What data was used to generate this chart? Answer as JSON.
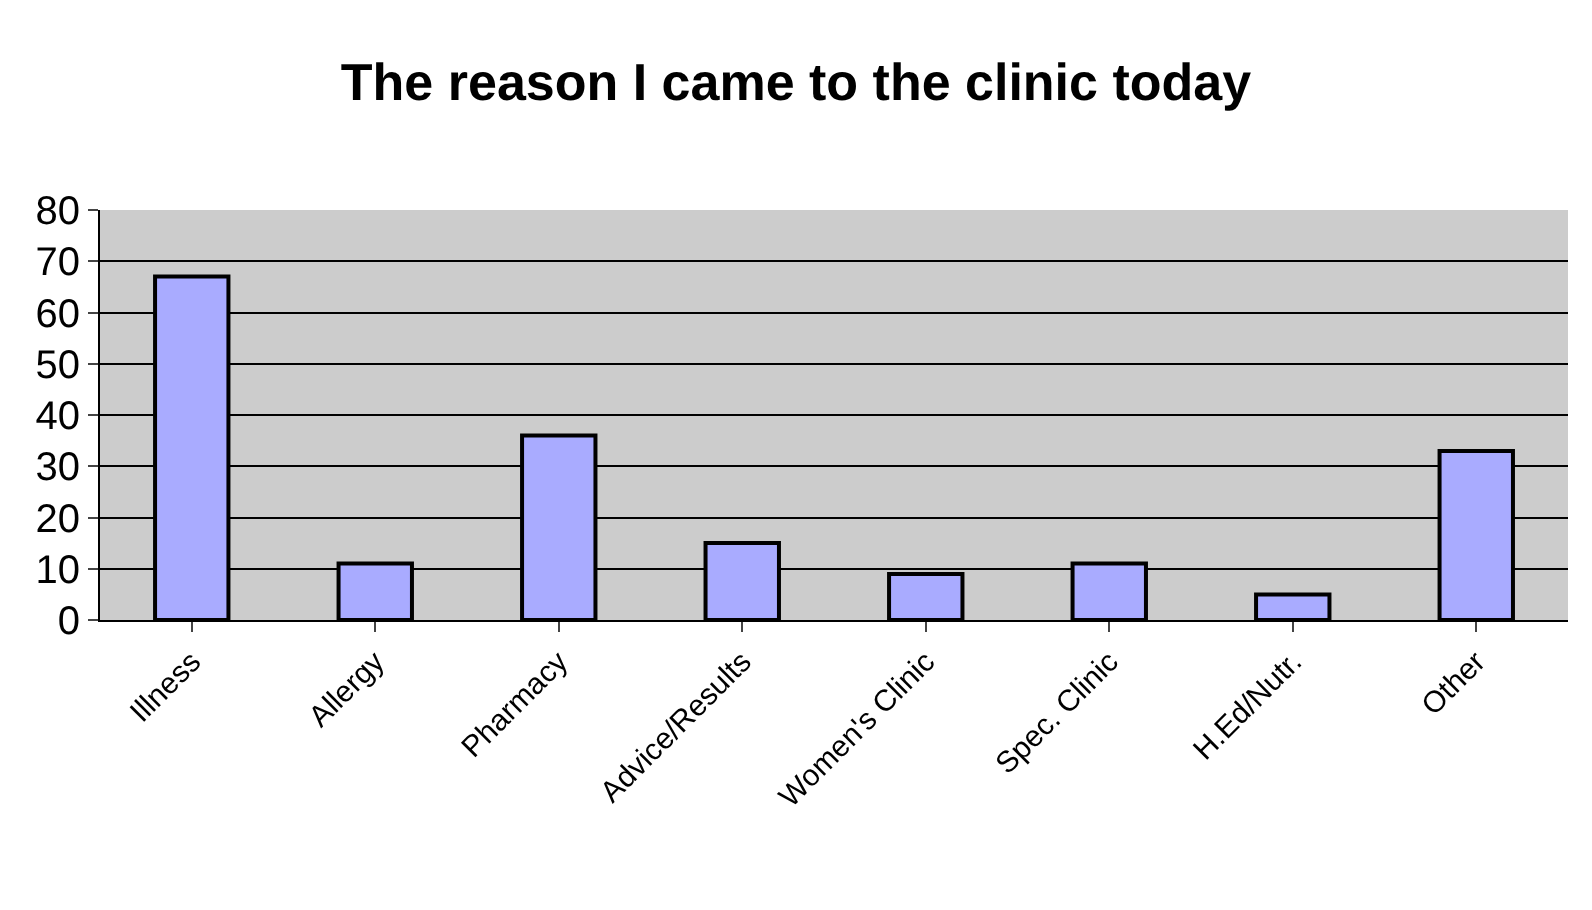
{
  "chart_data": {
    "type": "bar",
    "title": "The reason I came to the clinic today",
    "categories": [
      "Illness",
      "Allergy",
      "Pharmacy",
      "Advice/Results",
      "Women's Clinic",
      "Spec. Clinic",
      "H.Ed/Nutr.",
      "Other"
    ],
    "values": [
      67,
      11,
      36,
      15,
      9,
      11,
      5,
      33
    ],
    "color": "#a9abff",
    "ylim": [
      0,
      80
    ],
    "yticks": [
      0,
      10,
      20,
      30,
      40,
      50,
      60,
      70,
      80
    ],
    "grid": "y"
  }
}
